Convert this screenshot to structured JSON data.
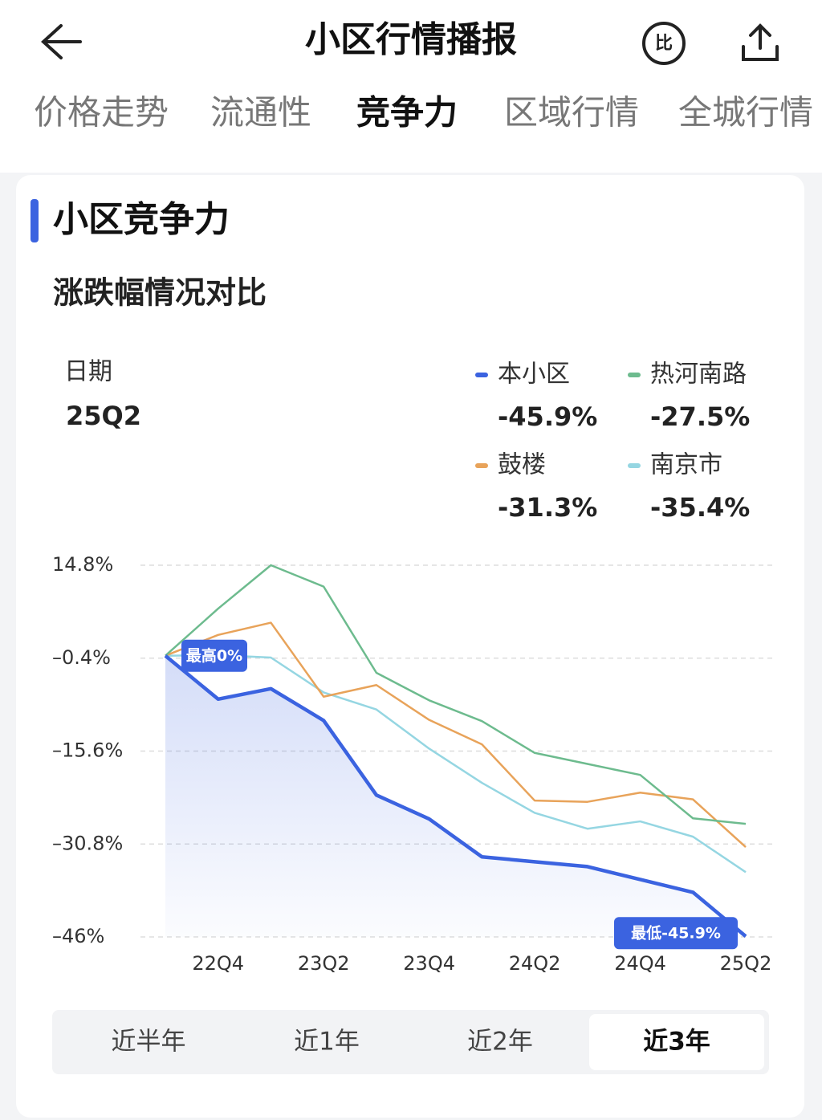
{
  "header": {
    "title": "小区行情播报"
  },
  "tabs": {
    "items": [
      "价格走势",
      "流通性",
      "竞争力",
      "区域行情",
      "全城行情"
    ],
    "active": 2
  },
  "section": {
    "title": "小区竞争力",
    "subtitle": "涨跌幅情况对比"
  },
  "chart_data": {
    "type": "line",
    "selected": {
      "label": "日期",
      "value": "25Q2"
    },
    "categories": [
      null,
      "22Q4",
      null,
      "23Q2",
      null,
      "23Q4",
      null,
      "24Q2",
      null,
      "24Q4",
      null,
      "25Q2"
    ],
    "series": [
      {
        "name": "本小区",
        "color": "#3b63e0",
        "values": [
          0,
          -7.1,
          -5.4,
          -10.6,
          -22.8,
          -26.7,
          -32.9,
          -33.7,
          -34.5,
          -36.6,
          -38.7,
          -45.9
        ],
        "value_labels": [
          null,
          null,
          null,
          null,
          null,
          null,
          null,
          null,
          null,
          null,
          null,
          "-45.9%"
        ]
      },
      {
        "name": "热河南路",
        "color": "#6dbb8e",
        "values": [
          0,
          7.7,
          14.8,
          11.3,
          -2.8,
          -7.3,
          -10.7,
          -15.9,
          -17.7,
          -19.5,
          -26.6,
          -27.5
        ],
        "value_labels": [
          null,
          null,
          null,
          null,
          null,
          null,
          null,
          null,
          null,
          null,
          null,
          "-27.5%"
        ]
      },
      {
        "name": "鼓楼",
        "color": "#e8a35a",
        "values": [
          0,
          3.4,
          5.4,
          -6.7,
          -4.8,
          -10.5,
          -14.5,
          -23.7,
          -23.9,
          -22.4,
          -23.5,
          -31.3
        ],
        "value_labels": [
          null,
          null,
          null,
          null,
          null,
          null,
          null,
          null,
          null,
          null,
          null,
          "-31.3%"
        ]
      },
      {
        "name": "南京市",
        "color": "#95d6e2",
        "values": [
          0,
          0.1,
          -0.3,
          -6.0,
          -8.8,
          -15.2,
          -20.8,
          -25.7,
          -28.3,
          -27.1,
          -29.6,
          -35.4
        ],
        "value_labels": [
          null,
          null,
          null,
          null,
          null,
          null,
          null,
          null,
          null,
          null,
          null,
          "-35.4%"
        ]
      }
    ],
    "annotations": [
      {
        "text": "最高0%",
        "series": 0,
        "index": 0
      },
      {
        "text": "最低-45.9%",
        "series": 0,
        "index": 11
      }
    ],
    "ylim": [
      -46,
      14.8
    ],
    "yticks": [
      {
        "value": 14.8,
        "label": "14.8%"
      },
      {
        "value": -0.4,
        "label": "–0.4%"
      },
      {
        "value": -15.6,
        "label": "–15.6%"
      },
      {
        "value": -30.8,
        "label": "–30.8%"
      },
      {
        "value": -46,
        "label": "–46%"
      }
    ],
    "grid": true
  },
  "periods": {
    "items": [
      "近半年",
      "近1年",
      "近2年",
      "近3年"
    ],
    "active": 3
  }
}
